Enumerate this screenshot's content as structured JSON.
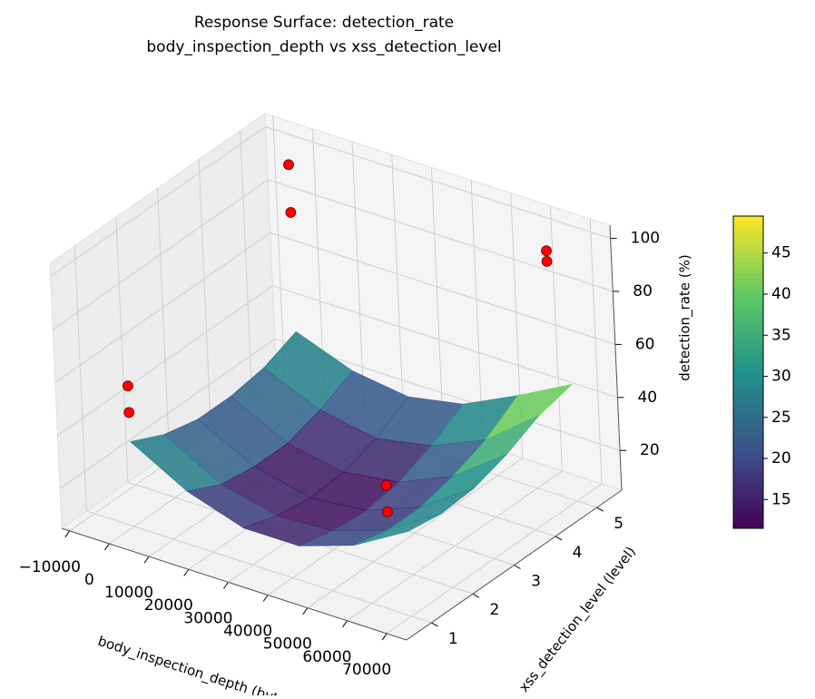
{
  "chart_data": {
    "type": "surface3d",
    "title": [
      "Response Surface: detection_rate",
      "body_inspection_depth vs xss_detection_level"
    ],
    "xlabel": "body_inspection_depth (bytes)",
    "ylabel": "xss_detection_level (level)",
    "zlabel": "detection_rate (%)",
    "xlim": [
      -12000,
      75000
    ],
    "xticks": [
      {
        "value": -10000,
        "label": "−10000"
      },
      0,
      10000,
      20000,
      30000,
      40000,
      50000,
      60000,
      70000
    ],
    "ylim": [
      0.4,
      5.6
    ],
    "yticks": [
      1,
      2,
      3,
      4,
      5
    ],
    "zlim": [
      5,
      105
    ],
    "zticks": [
      20,
      40,
      60,
      80,
      100
    ],
    "surface": {
      "colormap": "viridis",
      "x": [
        0,
        14000,
        28000,
        42000,
        56000,
        70000
      ],
      "y": [
        1,
        1.8,
        2.6,
        3.4,
        4.2,
        5
      ],
      "z": [
        [
          37,
          25,
          18,
          18,
          25,
          37
        ],
        [
          31,
          19,
          14,
          15,
          22,
          35
        ],
        [
          28,
          17,
          12,
          14,
          22,
          36
        ],
        [
          28,
          17,
          13,
          16,
          25,
          40
        ],
        [
          30,
          21,
          17,
          21,
          30,
          46
        ],
        [
          35,
          27,
          24,
          28,
          38,
          49
        ]
      ]
    },
    "points": {
      "color": "#ff0000",
      "x": [
        0,
        0,
        0,
        0,
        65000,
        65000,
        65000,
        65000
      ],
      "y": [
        1,
        1,
        5,
        5,
        5,
        5,
        1,
        1
      ],
      "z": [
        58,
        48,
        98,
        80,
        97,
        93,
        52,
        42
      ]
    },
    "colorbar": {
      "lim": [
        11.5,
        49.5
      ],
      "ticks": [
        15,
        20,
        25,
        30,
        35,
        40,
        45
      ]
    }
  }
}
